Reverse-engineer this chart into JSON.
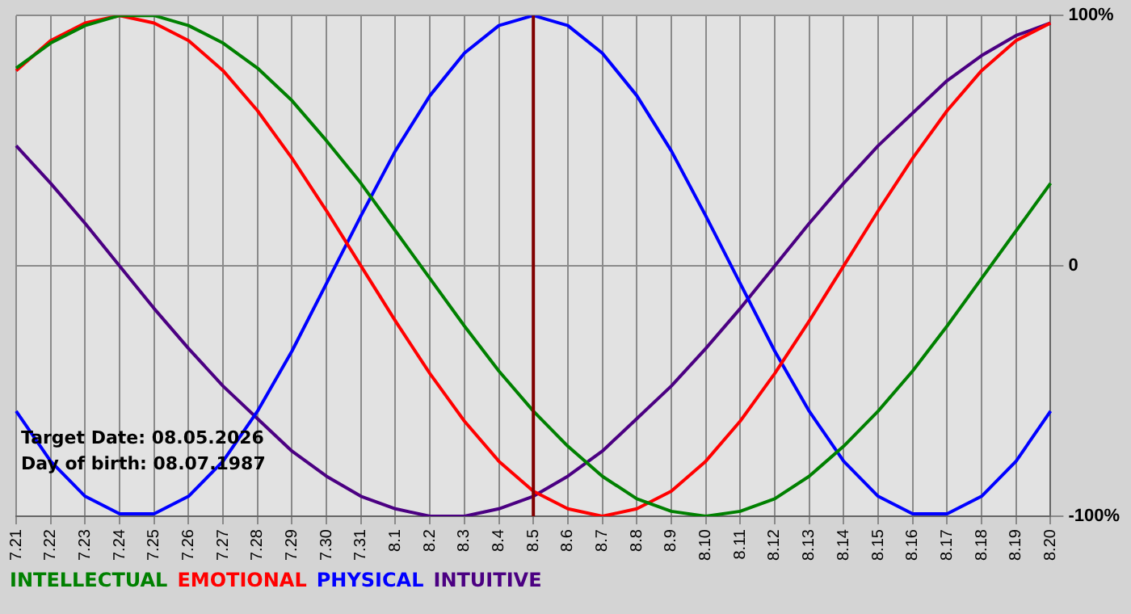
{
  "chart_data": {
    "type": "line",
    "categories": [
      "7.21",
      "7.22",
      "7.23",
      "7.24",
      "7.25",
      "7.26",
      "7.27",
      "7.28",
      "7.29",
      "7.30",
      "7.31",
      "8.1",
      "8.2",
      "8.3",
      "8.4",
      "8.5",
      "8.6",
      "8.7",
      "8.8",
      "8.9",
      "8.10",
      "8.11",
      "8.12",
      "8.13",
      "8.14",
      "8.15",
      "8.16",
      "8.17",
      "8.18",
      "8.19",
      "8.20"
    ],
    "series": [
      {
        "name": "INTELLECTUAL",
        "color": "#008000",
        "values": [
          79,
          89,
          96,
          100,
          100,
          96,
          89,
          79,
          66,
          50,
          33,
          14,
          -5,
          -24,
          -42,
          -58,
          -72,
          -84,
          -93,
          -98,
          -100,
          -98,
          -93,
          -84,
          -72,
          -58,
          -42,
          -24,
          -5,
          14,
          33
        ]
      },
      {
        "name": "EMOTIONAL",
        "color": "#ff0000",
        "values": [
          78,
          90,
          97,
          100,
          97,
          90,
          78,
          62,
          43,
          22,
          0,
          -22,
          -43,
          -62,
          -78,
          -90,
          -97,
          -100,
          -97,
          -90,
          -78,
          -62,
          -43,
          -22,
          0,
          22,
          43,
          62,
          78,
          90,
          97
        ]
      },
      {
        "name": "PHYSICAL",
        "color": "#0000ff",
        "values": [
          -58,
          -78,
          -92,
          -99,
          -99,
          -92,
          -78,
          -58,
          -34,
          -7,
          20,
          46,
          68,
          85,
          96,
          100,
          96,
          85,
          68,
          46,
          20,
          -7,
          -34,
          -58,
          -78,
          -92,
          -99,
          -99,
          -92,
          -78,
          -58
        ]
      },
      {
        "name": "INTUITIVE",
        "color": "#4b0082",
        "values": [
          48,
          33,
          17,
          0,
          -17,
          -33,
          -48,
          -61,
          -74,
          -84,
          -92,
          -97,
          -100,
          -100,
          -97,
          -92,
          -84,
          -74,
          -61,
          -48,
          -33,
          -17,
          0,
          17,
          33,
          48,
          61,
          74,
          84,
          92,
          97
        ]
      }
    ],
    "ylim": [
      -100,
      100
    ],
    "yticks": [
      {
        "value": 100,
        "label": "100%"
      },
      0,
      {
        "value": -100,
        "label": "-100%"
      }
    ],
    "grid": true,
    "legend": "bottom",
    "marker": "none",
    "line_style": "solid",
    "ref_lines": [
      {
        "axis": "x",
        "value": "8.5",
        "color": "#800000"
      }
    ],
    "annotations": [
      "Target Date: 08.05.2026",
      "Day of birth: 08.07.1987"
    ]
  }
}
